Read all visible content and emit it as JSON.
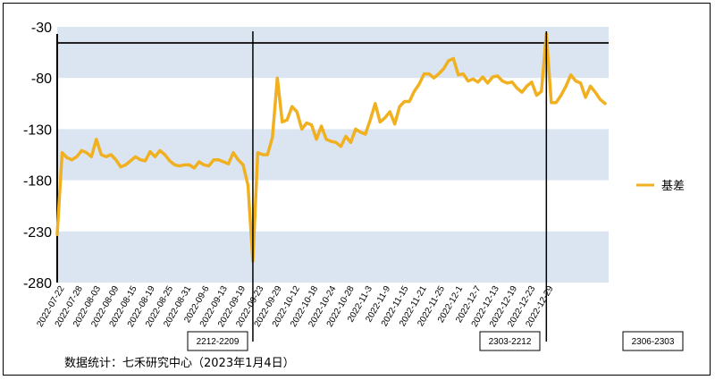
{
  "chart_data": {
    "type": "line",
    "title": "",
    "xlabel": "",
    "ylabel": "",
    "ylim": [
      -280,
      -30
    ],
    "yticks": [
      -30,
      -80,
      -130,
      -180,
      -230,
      -280
    ],
    "grid": "alternating horizontal bands",
    "legend_position": "right",
    "colors": {
      "series": "#F0B020",
      "band": "#DBE5F1",
      "text": "#000000"
    },
    "xtick_labels": [
      "2022-07-22",
      "2022-07-28",
      "2022-08-03",
      "2022-08-09",
      "2022-08-15",
      "2022-08-19",
      "2022-08-25",
      "2022-08-31",
      "2022-09-6",
      "2022-09-13",
      "2022-09-19",
      "2022-09-23",
      "2022-09-29",
      "2022-10-12",
      "2022-10-18",
      "2022-10-24",
      "2022-10-28",
      "2022-11-3",
      "2022-11-9",
      "2022-11-15",
      "2022-11-21",
      "2022-11-25",
      "2022-12-1",
      "2022-12-7",
      "2022-12-13",
      "2022-12-19",
      "2022-12-23",
      "2022-12-29"
    ],
    "series": [
      {
        "name": "基差",
        "values": [
          -233,
          -153,
          -158,
          -160,
          -157,
          -151,
          -153,
          -157,
          -140,
          -155,
          -157,
          -155,
          -160,
          -167,
          -165,
          -161,
          -157,
          -160,
          -161,
          -152,
          -157,
          -151,
          -155,
          -161,
          -165,
          -166,
          -165,
          -165,
          -168,
          -162,
          -165,
          -166,
          -160,
          -160,
          -162,
          -164,
          -153,
          -160,
          -165,
          -185,
          -259,
          -153,
          -155,
          -155,
          -138,
          -80,
          -123,
          -121,
          -108,
          -113,
          -130,
          -124,
          -126,
          -140,
          -127,
          -140,
          -142,
          -143,
          -147,
          -137,
          -143,
          -130,
          -133,
          -135,
          -121,
          -105,
          -123,
          -119,
          -113,
          -125,
          -108,
          -103,
          -103,
          -93,
          -86,
          -76,
          -76,
          -80,
          -76,
          -71,
          -63,
          -61,
          -77,
          -76,
          -83,
          -81,
          -84,
          -79,
          -85,
          -79,
          -78,
          -83,
          -85,
          -84,
          -90,
          -94,
          -88,
          -84,
          -97,
          -93,
          -37,
          -104,
          -104,
          -97,
          -88,
          -77,
          -83,
          -85,
          -99,
          -88,
          -94,
          -101,
          -105
        ]
      }
    ],
    "annotations": [
      {
        "label": "2212-2209",
        "at_index": 40
      },
      {
        "label": "2303-2212",
        "at_index": 100
      },
      {
        "label": "2306-2303",
        "at_index": null
      }
    ],
    "source": "数据统计：七禾研究中心（2023年1月4日）"
  }
}
